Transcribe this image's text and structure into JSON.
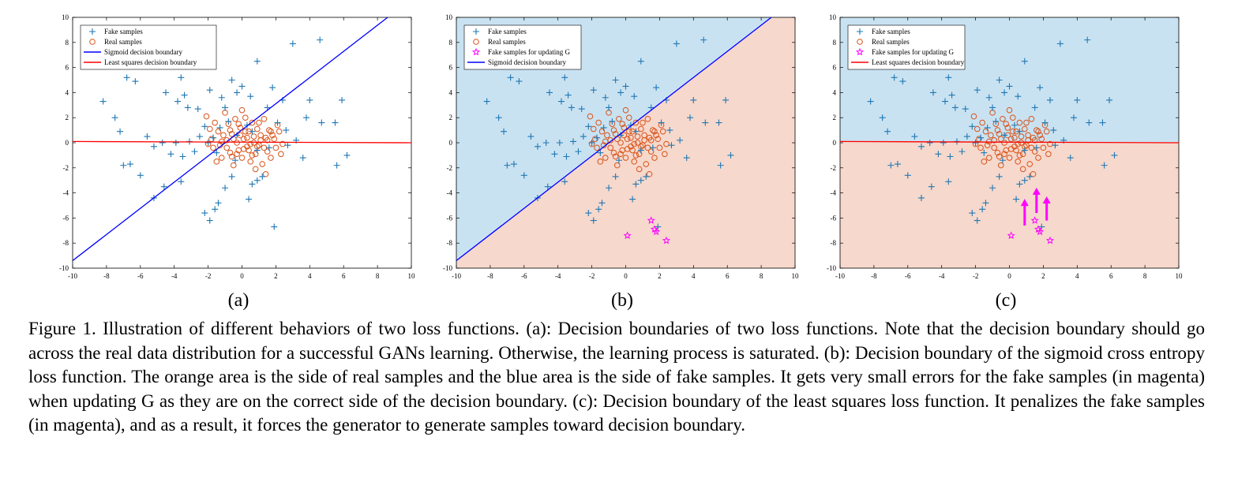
{
  "figure": {
    "panels": [
      {
        "label": "(a)",
        "legend": [
          "Fake samples",
          "Real samples",
          "Sigmoid decision boundary",
          "Least squares decision boundary"
        ],
        "legend_kinds": [
          "fake",
          "real",
          "sigmoid",
          "ls"
        ],
        "shading": "none",
        "show_update": false,
        "show_arrows": false,
        "show_sigmoid": true,
        "show_ls": true
      },
      {
        "label": "(b)",
        "legend": [
          "Fake samples",
          "Real samples",
          "Fake samples for updating G",
          "Sigmoid decision boundary"
        ],
        "legend_kinds": [
          "fake",
          "real",
          "update",
          "sigmoid"
        ],
        "shading": "sigmoid",
        "show_update": true,
        "show_arrows": false,
        "show_sigmoid": true,
        "show_ls": false
      },
      {
        "label": "(c)",
        "legend": [
          "Fake samples",
          "Real samples",
          "Fake samples for updating G",
          "Least squares decision boundary"
        ],
        "legend_kinds": [
          "fake",
          "real",
          "update",
          "ls"
        ],
        "shading": "ls",
        "show_update": true,
        "show_arrows": true,
        "show_sigmoid": false,
        "show_ls": true
      }
    ],
    "caption": "Figure 1. Illustration of different behaviors of two loss functions. (a): Decision boundaries of two loss functions. Note that the decision boundary should go across the real data distribution for a successful GANs learning. Otherwise, the learning process is saturated. (b): Decision boundary of the sigmoid cross entropy loss function. The orange area is the side of real samples and the blue area is the side of fake samples. It gets very small errors for the fake samples (in magenta) when updating G as they are on the correct side of the decision boundary. (c): Decision boundary of the least squares loss function. It penalizes the fake samples (in magenta), and as a result, it forces the generator to generate samples toward decision boundary."
  },
  "chart_data": {
    "type": "scatter",
    "xlim": [
      -10,
      10
    ],
    "ylim": [
      -10,
      10
    ],
    "x_ticks": [
      -10,
      -8,
      -6,
      -4,
      -2,
      0,
      2,
      4,
      6,
      8,
      10
    ],
    "y_ticks": [
      -10,
      -8,
      -6,
      -4,
      -2,
      0,
      2,
      4,
      6,
      8,
      10
    ],
    "colors": {
      "fake": "#1f77b4",
      "real": "#d95319",
      "update": "#ff00ff",
      "sigmoid": "#0000ff",
      "ls": "#ff0000",
      "fake_region": "#c9e2f1",
      "real_region": "#f6d8cc"
    },
    "sigmoid_boundary": [
      [
        -10,
        -9.4
      ],
      [
        8.6,
        10
      ]
    ],
    "least_squares_boundary": [
      [
        -10,
        0.1
      ],
      [
        10,
        0.0
      ]
    ],
    "fake_samples": [
      [
        -8.2,
        3.3
      ],
      [
        -7.5,
        2.0
      ],
      [
        -7.2,
        0.9
      ],
      [
        -6.8,
        5.2
      ],
      [
        -6.3,
        4.9
      ],
      [
        -5.6,
        0.5
      ],
      [
        -5.2,
        -0.3
      ],
      [
        -4.5,
        4.0
      ],
      [
        -3.8,
        3.3
      ],
      [
        -3.4,
        3.8
      ],
      [
        -3.6,
        5.2
      ],
      [
        -3.2,
        2.8
      ],
      [
        -2.6,
        2.7
      ],
      [
        -2.2,
        1.3
      ],
      [
        -1.9,
        4.2
      ],
      [
        -1.2,
        3.6
      ],
      [
        -1.0,
        2.8
      ],
      [
        -0.6,
        5.0
      ],
      [
        -0.3,
        4.0
      ],
      [
        0.0,
        4.5
      ],
      [
        0.5,
        3.7
      ],
      [
        0.9,
        6.5
      ],
      [
        1.5,
        2.8
      ],
      [
        2.4,
        3.4
      ],
      [
        3.0,
        7.9
      ],
      [
        4.6,
        8.2
      ],
      [
        4.0,
        3.4
      ],
      [
        5.5,
        1.6
      ],
      [
        5.9,
        3.4
      ],
      [
        5.6,
        -1.8
      ],
      [
        6.2,
        -1.0
      ],
      [
        4.7,
        1.6
      ],
      [
        3.6,
        -1.2
      ],
      [
        3.2,
        0.2
      ],
      [
        2.6,
        1.0
      ],
      [
        2.1,
        1.6
      ],
      [
        1.6,
        -0.4
      ],
      [
        1.2,
        -2.7
      ],
      [
        0.9,
        -3.0
      ],
      [
        0.6,
        -3.3
      ],
      [
        0.4,
        -4.5
      ],
      [
        -0.6,
        -2.7
      ],
      [
        -1.0,
        -3.6
      ],
      [
        -1.4,
        -4.8
      ],
      [
        -1.6,
        -5.3
      ],
      [
        -2.2,
        -5.6
      ],
      [
        -1.9,
        -6.2
      ],
      [
        -3.6,
        -3.1
      ],
      [
        -4.6,
        -3.5
      ],
      [
        -5.2,
        -4.4
      ],
      [
        -6.6,
        -1.7
      ],
      [
        -7.0,
        -1.8
      ],
      [
        -6.0,
        -2.6
      ],
      [
        -4.2,
        -0.9
      ],
      [
        -3.5,
        -1.1
      ],
      [
        -2.8,
        -0.7
      ],
      [
        -2.5,
        0.5
      ],
      [
        -1.7,
        0.4
      ],
      [
        -1.5,
        -0.8
      ],
      [
        -0.8,
        1.7
      ],
      [
        -0.3,
        0.6
      ],
      [
        0.3,
        1.4
      ],
      [
        0.6,
        0.9
      ],
      [
        0.9,
        -0.6
      ],
      [
        -0.4,
        -1.4
      ],
      [
        -1.3,
        1.2
      ],
      [
        -3.1,
        0.1
      ],
      [
        1.9,
        -6.7
      ],
      [
        -4.7,
        0.0
      ],
      [
        -3.9,
        0.0
      ],
      [
        -2.0,
        0.0
      ],
      [
        2.7,
        -0.2
      ],
      [
        3.8,
        2.0
      ],
      [
        1.8,
        4.4
      ]
    ],
    "real_samples": [
      [
        -2.1,
        2.1
      ],
      [
        -1.9,
        1.1
      ],
      [
        -1.7,
        -0.4
      ],
      [
        -1.4,
        0.9
      ],
      [
        -1.2,
        -1.2
      ],
      [
        -1.0,
        2.4
      ],
      [
        -0.9,
        0.2
      ],
      [
        -0.8,
        1.5
      ],
      [
        -0.7,
        -0.8
      ],
      [
        -0.6,
        0.7
      ],
      [
        -0.5,
        -1.8
      ],
      [
        -0.4,
        1.9
      ],
      [
        -0.3,
        0.0
      ],
      [
        -0.2,
        -0.6
      ],
      [
        -0.1,
        1.2
      ],
      [
        0.0,
        -1.2
      ],
      [
        0.1,
        0.3
      ],
      [
        0.2,
        2.0
      ],
      [
        0.3,
        -0.3
      ],
      [
        0.4,
        0.9
      ],
      [
        0.5,
        -1.5
      ],
      [
        0.6,
        1.6
      ],
      [
        0.7,
        0.0
      ],
      [
        0.8,
        -0.9
      ],
      [
        0.9,
        1.1
      ],
      [
        1.0,
        -0.2
      ],
      [
        1.1,
        0.6
      ],
      [
        1.2,
        -1.7
      ],
      [
        1.3,
        1.9
      ],
      [
        1.4,
        0.4
      ],
      [
        1.5,
        -0.7
      ],
      [
        1.6,
        1.0
      ],
      [
        1.7,
        -1.2
      ],
      [
        1.9,
        0.3
      ],
      [
        2.0,
        -0.4
      ],
      [
        2.2,
        0.9
      ],
      [
        2.4,
        -0.1
      ],
      [
        -1.6,
        1.6
      ],
      [
        -1.3,
        -0.2
      ],
      [
        -1.1,
        0.6
      ],
      [
        -0.9,
        -0.4
      ],
      [
        -0.7,
        1.0
      ],
      [
        -0.5,
        0.3
      ],
      [
        -0.3,
        -0.9
      ],
      [
        -0.1,
        0.6
      ],
      [
        0.1,
        -0.5
      ],
      [
        0.3,
        0.4
      ],
      [
        0.5,
        -0.1
      ],
      [
        0.7,
        0.5
      ],
      [
        0.9,
        -0.3
      ],
      [
        1.1,
        0.2
      ],
      [
        1.3,
        -0.4
      ],
      [
        1.5,
        0.2
      ],
      [
        1.8,
        0.6
      ],
      [
        -2.0,
        -0.1
      ],
      [
        -1.8,
        0.3
      ],
      [
        -1.5,
        -1.5
      ],
      [
        0.0,
        2.6
      ],
      [
        0.8,
        -2.1
      ],
      [
        1.4,
        -2.5
      ],
      [
        2.1,
        1.4
      ],
      [
        -0.2,
        1.5
      ],
      [
        0.6,
        -1.0
      ],
      [
        1.0,
        1.6
      ],
      [
        -1.2,
        0.1
      ],
      [
        1.7,
        0.9
      ],
      [
        2.3,
        -0.9
      ],
      [
        -0.6,
        -1.1
      ],
      [
        0.2,
        0.9
      ],
      [
        0.4,
        -0.6
      ]
    ],
    "update_samples": [
      [
        0.1,
        -7.4
      ],
      [
        1.5,
        -6.2
      ],
      [
        1.7,
        -6.9
      ],
      [
        1.8,
        -7.1
      ],
      [
        2.4,
        -7.8
      ]
    ],
    "arrows": [
      [
        0.9,
        -6.6,
        0.9,
        -4.6
      ],
      [
        1.6,
        -5.6,
        1.6,
        -3.7
      ],
      [
        2.2,
        -6.2,
        2.2,
        -4.4
      ]
    ]
  }
}
